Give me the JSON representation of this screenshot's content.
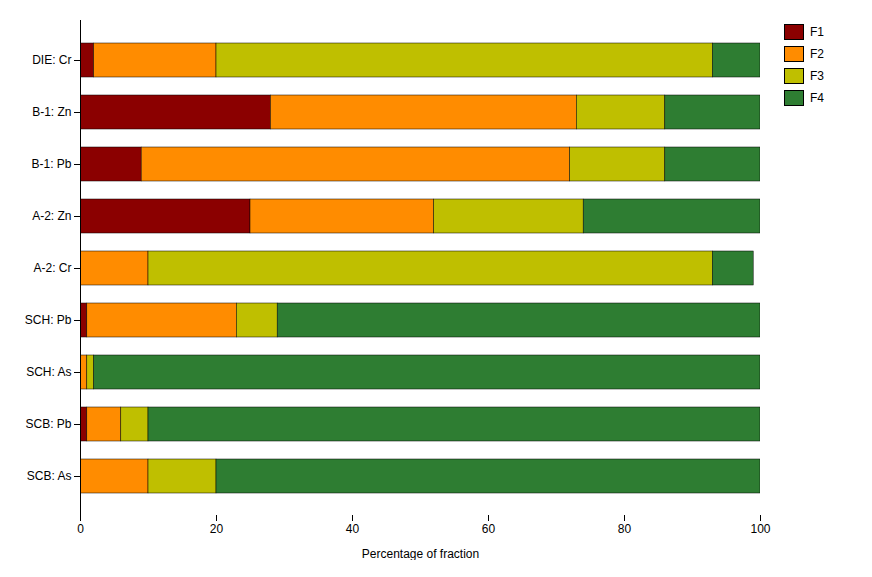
{
  "chart_data": {
    "type": "bar",
    "orientation": "horizontal",
    "stacked": true,
    "categories": [
      "SCB: As",
      "SCB: Pb",
      "SCH: As",
      "SCH: Pb",
      "A-2: Cr",
      "A-2: Zn",
      "B-1: Pb",
      "B-1: Zn",
      "DIE: Cr"
    ],
    "series": [
      {
        "name": "F1",
        "color": "#8B0000",
        "values": [
          0,
          1,
          0,
          1,
          0,
          25,
          9,
          28,
          2
        ]
      },
      {
        "name": "F2",
        "color": "#FF8C00",
        "values": [
          10,
          5,
          1,
          22,
          10,
          27,
          63,
          45,
          18
        ]
      },
      {
        "name": "F3",
        "color": "#BFBF00",
        "values": [
          10,
          4,
          1,
          6,
          83,
          22,
          14,
          13,
          73
        ]
      },
      {
        "name": "F4",
        "color": "#2E7D32",
        "values": [
          80,
          90,
          98,
          71,
          6,
          26,
          14,
          14,
          7
        ]
      }
    ],
    "xlabel": "Percentage of fraction",
    "xlim": [
      0,
      100
    ],
    "xticks": [
      0,
      20,
      40,
      60,
      80,
      100
    ],
    "grid": false,
    "legend": "upper right"
  }
}
